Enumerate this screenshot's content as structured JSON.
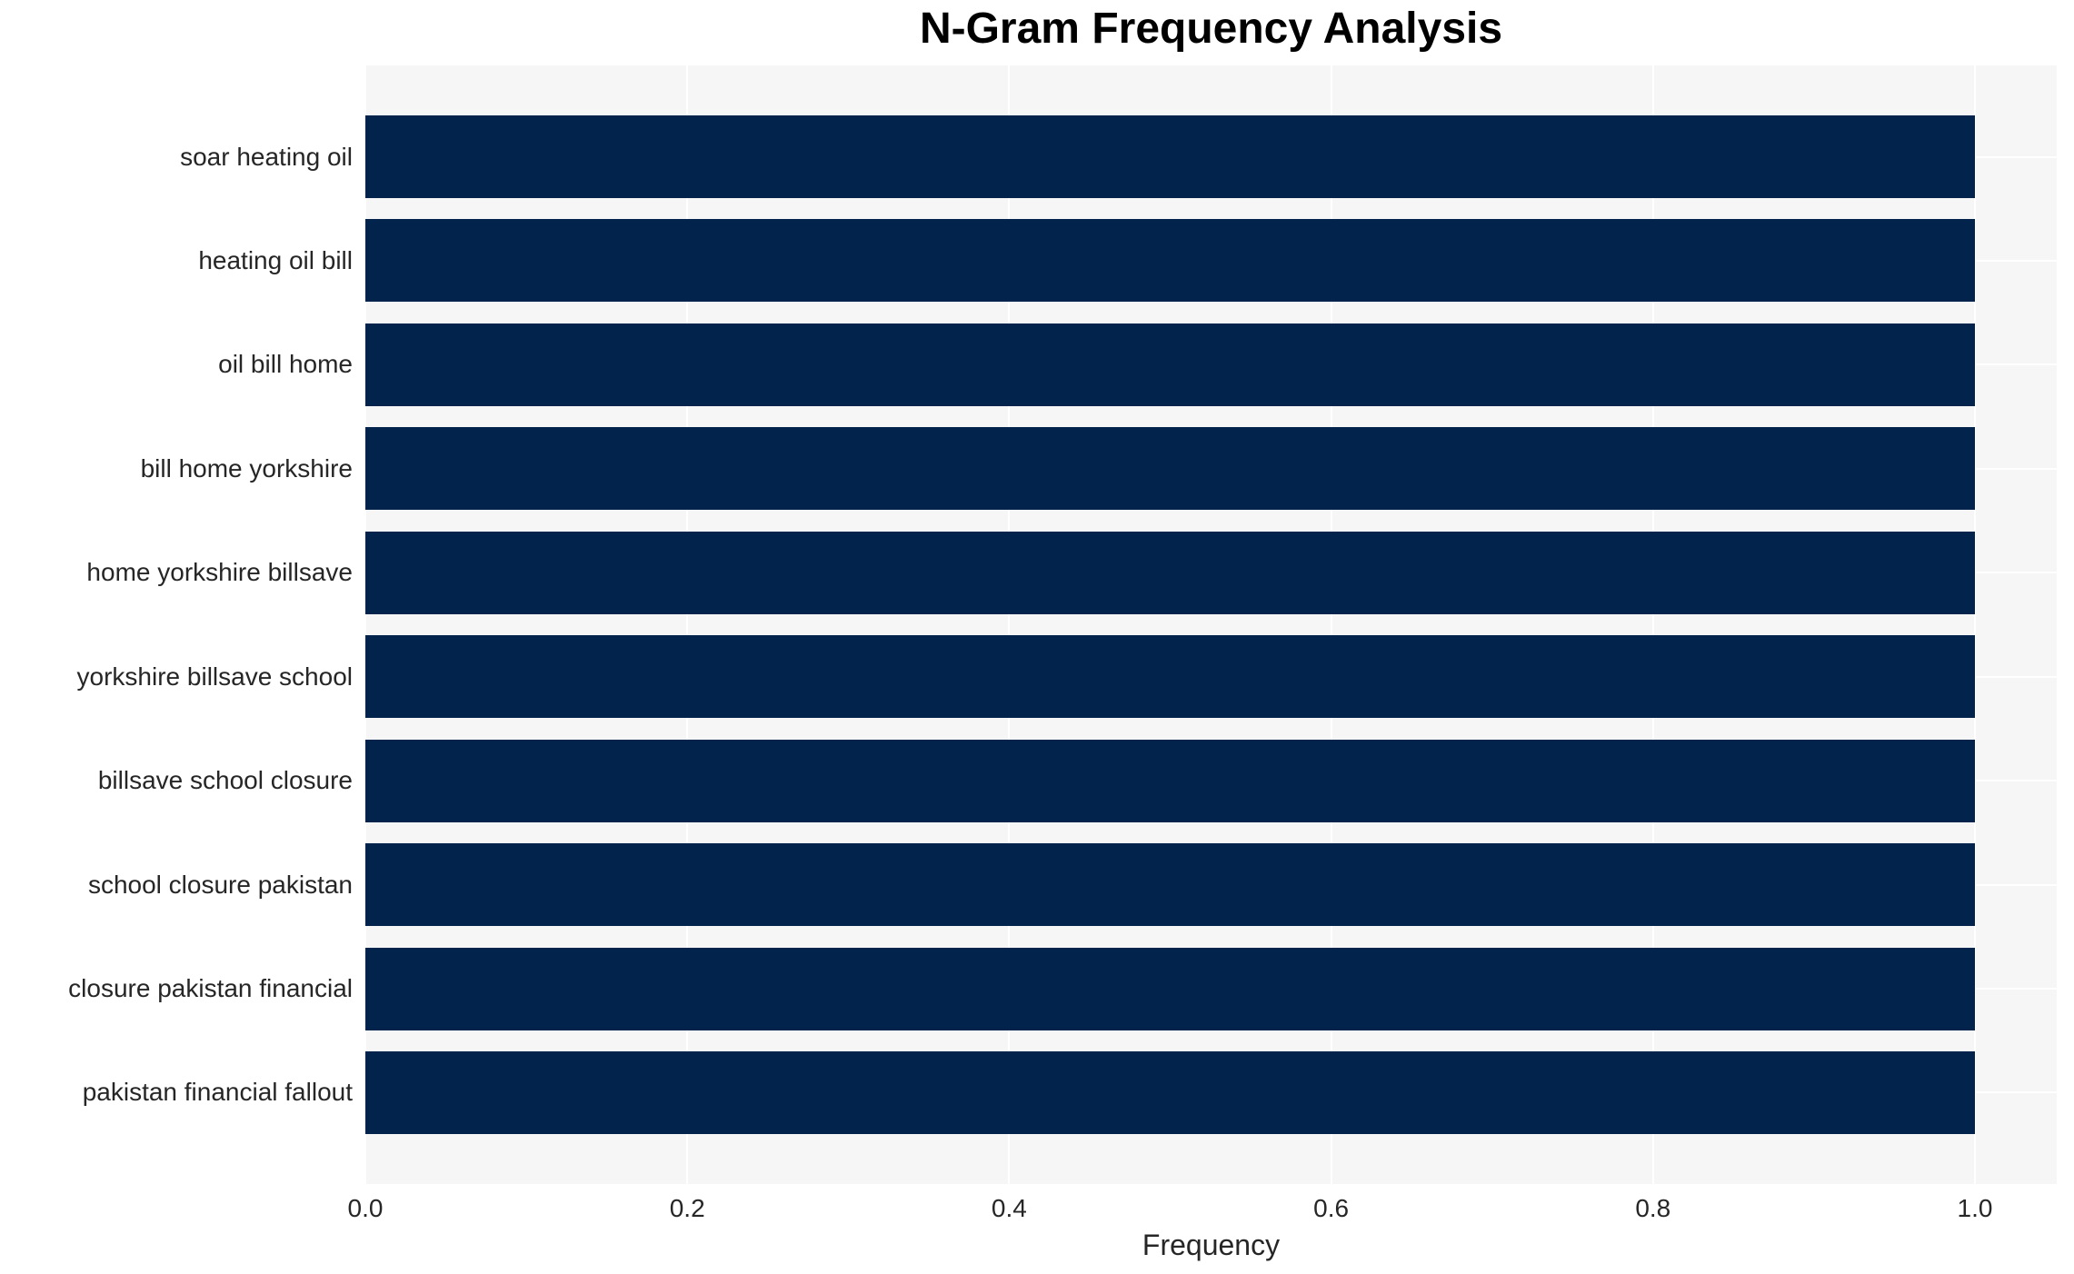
{
  "chart_data": {
    "type": "bar",
    "orientation": "horizontal",
    "title": "N-Gram Frequency Analysis",
    "xlabel": "Frequency",
    "ylabel": "",
    "categories": [
      "soar heating oil",
      "heating oil bill",
      "oil bill home",
      "bill home yorkshire",
      "home yorkshire billsave",
      "yorkshire billsave school",
      "billsave school closure",
      "school closure pakistan",
      "closure pakistan financial",
      "pakistan financial fallout"
    ],
    "values": [
      1.0,
      1.0,
      1.0,
      1.0,
      1.0,
      1.0,
      1.0,
      1.0,
      1.0,
      1.0
    ],
    "xlim": [
      0.0,
      1.05
    ],
    "xticks": [
      0.0,
      0.2,
      0.4,
      0.6,
      0.8,
      1.0
    ],
    "xtick_labels": [
      "0.0",
      "0.2",
      "0.4",
      "0.6",
      "0.8",
      "1.0"
    ],
    "grid": true,
    "legend": false,
    "colors": {
      "bar": "#02234c",
      "plot_background": "#f6f6f7",
      "gridline": "#ffffff",
      "tick_text": "#262626",
      "title_text": "#000000"
    }
  }
}
